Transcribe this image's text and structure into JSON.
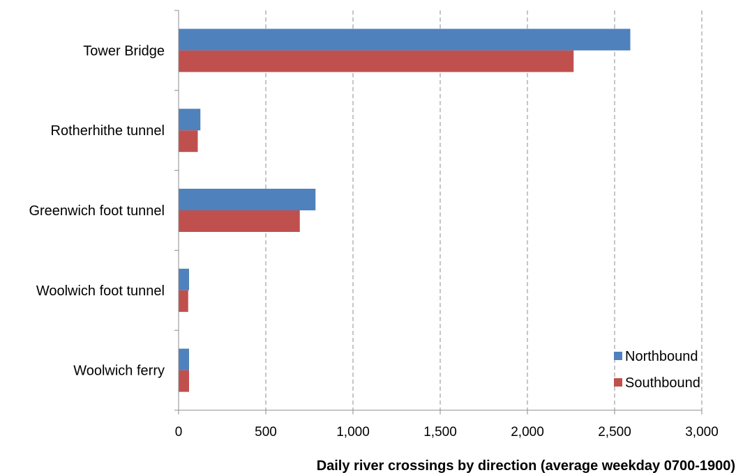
{
  "chart_data": {
    "type": "bar",
    "orientation": "horizontal",
    "title": "",
    "xlabel": "Daily river crossings by direction (average weekday 0700-1900)",
    "ylabel": "",
    "categories": [
      "Tower Bridge",
      "Rotherhithe tunnel",
      "Greenwich foot tunnel",
      "Woolwich foot tunnel",
      "Woolwich ferry"
    ],
    "series": [
      {
        "name": "Northbound",
        "color": "#4f81bd",
        "values": [
          2590,
          125,
          785,
          60,
          60
        ]
      },
      {
        "name": "Southbound",
        "color": "#c0504d",
        "values": [
          2265,
          110,
          695,
          55,
          60
        ]
      }
    ],
    "xlim": [
      0,
      3000
    ],
    "xticks": [
      0,
      500,
      1000,
      1500,
      2000,
      2500,
      3000
    ],
    "xtick_labels": [
      "0",
      "500",
      "1,000",
      "1,500",
      "2,000",
      "2,500",
      "3,000"
    ],
    "grid": "vertical dashed",
    "legend_position": "bottom-right"
  }
}
